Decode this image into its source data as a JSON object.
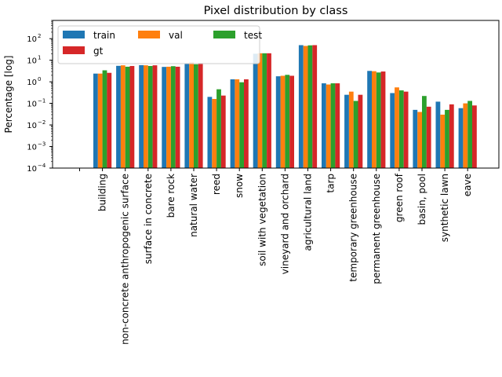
{
  "chart_data": {
    "type": "bar",
    "title": "Pixel distribution by class",
    "xlabel": "",
    "ylabel": "Percentage [log]",
    "yscale": "log",
    "ylim": [
      0.0001,
      700
    ],
    "yticks": [
      {
        "value": 0.0001,
        "base": "10",
        "exp": "−4"
      },
      {
        "value": 0.001,
        "base": "10",
        "exp": "−3"
      },
      {
        "value": 0.01,
        "base": "10",
        "exp": "−2"
      },
      {
        "value": 0.1,
        "base": "10",
        "exp": "−1"
      },
      {
        "value": 1,
        "base": "10",
        "exp": "0"
      },
      {
        "value": 10,
        "base": "10",
        "exp": "1"
      },
      {
        "value": 100,
        "base": "10",
        "exp": "2"
      }
    ],
    "grid": false,
    "legend": {
      "placement": "top-left",
      "columns": 3
    },
    "categories": [
      "",
      "building",
      "non-concrete anthropogenic surface",
      "surface in concrete",
      "bare rock",
      "natural water",
      "reed",
      "snow",
      "soil with vegetation",
      "vineyard and orchard",
      "agricultural land",
      "tarp",
      "temporary greenhouse",
      "permanent greenhouse",
      "green roof",
      "basin, pool",
      "synthetic lawn",
      "eave"
    ],
    "series": [
      {
        "name": "train",
        "color": "#1f77b4",
        "values": [
          null,
          2.4,
          5.5,
          5.9,
          4.9,
          7.3,
          0.2,
          1.3,
          20,
          1.8,
          50,
          0.85,
          0.25,
          3.2,
          0.3,
          0.05,
          0.12,
          0.06
        ]
      },
      {
        "name": "val",
        "color": "#ff7f0e",
        "values": [
          null,
          2.4,
          5.8,
          5.8,
          5.0,
          8.0,
          0.16,
          1.3,
          21,
          1.9,
          46,
          0.75,
          0.35,
          3.1,
          0.55,
          0.04,
          0.03,
          0.1
        ]
      },
      {
        "name": "test",
        "color": "#2ca02c",
        "values": [
          null,
          3.4,
          5.0,
          5.4,
          5.3,
          6.5,
          0.45,
          0.95,
          21,
          2.1,
          49,
          0.85,
          0.13,
          2.7,
          0.4,
          0.22,
          0.05,
          0.13
        ]
      },
      {
        "name": "gt",
        "color": "#d62728",
        "values": [
          null,
          2.6,
          5.4,
          5.8,
          5.0,
          7.5,
          0.23,
          1.3,
          21,
          1.9,
          50,
          0.85,
          0.25,
          3.0,
          0.35,
          0.07,
          0.09,
          0.08
        ]
      }
    ]
  }
}
